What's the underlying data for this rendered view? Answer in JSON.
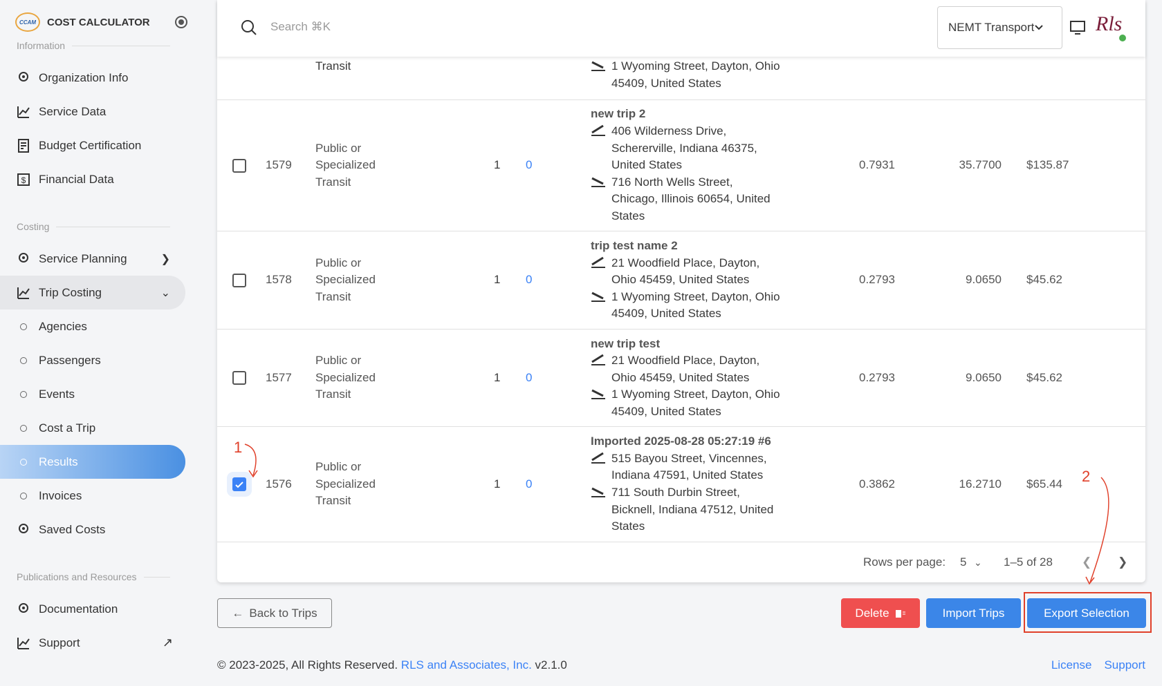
{
  "sidebar": {
    "brand": "COST CALCULATOR",
    "logo": "CCAM",
    "sections": [
      {
        "title": "Information",
        "items": [
          {
            "label": "Organization Info"
          },
          {
            "label": "Service Data"
          },
          {
            "label": "Budget Certification"
          },
          {
            "label": "Financial Data"
          }
        ]
      },
      {
        "title": "Costing",
        "items": [
          {
            "label": "Service Planning"
          },
          {
            "label": "Trip Costing"
          },
          {
            "label": "Agencies"
          },
          {
            "label": "Passengers"
          },
          {
            "label": "Events"
          },
          {
            "label": "Cost a Trip"
          },
          {
            "label": "Results"
          },
          {
            "label": "Invoices"
          },
          {
            "label": "Saved Costs"
          }
        ]
      },
      {
        "title": "Publications and Resources",
        "items": [
          {
            "label": "Documentation"
          },
          {
            "label": "Support"
          }
        ]
      }
    ]
  },
  "header": {
    "search": "Search ⌘K",
    "select": "NEMT Transport",
    "avatar": "Rls"
  },
  "table": {
    "partial_row": {
      "mode": "Transit",
      "destination": "1 Wyoming Street, Dayton, Ohio 45409, United States"
    },
    "rows": [
      {
        "id": "1579",
        "mode": "Public or Specialized Transit",
        "passengers": "1",
        "link": "0",
        "trip": "new trip 2",
        "origin": "406 Wilderness Drive, Schererville, Indiana 46375, United States",
        "destination": "716 North Wells Street, Chicago, Illinois 60654, United States",
        "factor": "0.7931",
        "miles": "35.7700",
        "cost": "$135.87",
        "selected": false
      },
      {
        "id": "1578",
        "mode": "Public or Specialized Transit",
        "passengers": "1",
        "link": "0",
        "trip": "trip test name 2",
        "origin": "21 Woodfield Place, Dayton, Ohio 45459, United States",
        "destination": "1 Wyoming Street, Dayton, Ohio 45409, United States",
        "factor": "0.2793",
        "miles": "9.0650",
        "cost": "$45.62",
        "selected": false
      },
      {
        "id": "1577",
        "mode": "Public or Specialized Transit",
        "passengers": "1",
        "link": "0",
        "trip": "new trip test",
        "origin": "21 Woodfield Place, Dayton, Ohio 45459, United States",
        "destination": "1 Wyoming Street, Dayton, Ohio 45409, United States",
        "factor": "0.2793",
        "miles": "9.0650",
        "cost": "$45.62",
        "selected": false
      },
      {
        "id": "1576",
        "mode": "Public or Specialized Transit",
        "passengers": "1",
        "link": "0",
        "trip": "Imported 2025-08-28 05:27:19 #6",
        "origin": "515 Bayou Street, Vincennes, Indiana 47591, United States",
        "destination": "711 South Durbin Street, Bicknell, Indiana 47512, United States",
        "factor": "0.3862",
        "miles": "16.2710",
        "cost": "$65.44",
        "selected": true
      }
    ],
    "pagination": {
      "rows_label": "Rows per page:",
      "rows_value": "5",
      "range": "1–5 of 28"
    }
  },
  "actions": {
    "back": "Back to Trips",
    "delete": "Delete",
    "import": "Import Trips",
    "export": "Export Selection"
  },
  "annotations": [
    "1",
    "2"
  ],
  "footer": {
    "copyright": "© 2023-2025, All Rights Reserved.",
    "company": "RLS and Associates, Inc.",
    "version": "v2.1.0",
    "license": "License",
    "support": "Support"
  }
}
